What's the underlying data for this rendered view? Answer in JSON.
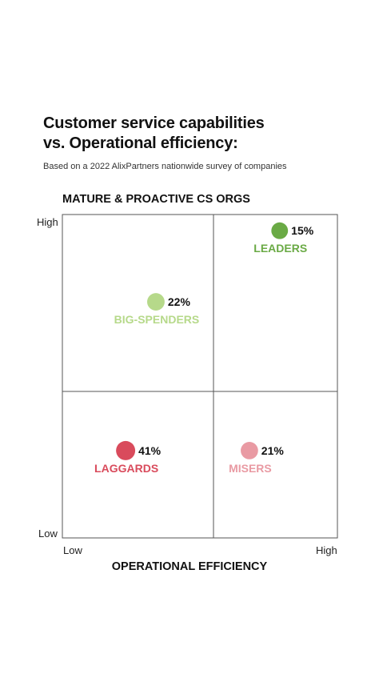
{
  "title": {
    "line1": "Customer service capabilities",
    "line2": "vs. Operational efficiency:"
  },
  "subtitle": "Based on a 2022 AlixPartners nationwide survey of companies",
  "chart_data": {
    "type": "scatter",
    "ylabel": "MATURE & PROACTIVE CS ORGS",
    "xlabel": "OPERATIONAL EFFICIENCY",
    "x_ticks": [
      "Low",
      "High"
    ],
    "y_ticks": [
      "High",
      "Low"
    ],
    "xlim": [
      0,
      1
    ],
    "ylim": [
      0,
      1
    ],
    "grid": "2x2 quadrants",
    "segments": [
      {
        "name": "LEADERS",
        "value": 15,
        "label": "15%",
        "x": 0.79,
        "y": 0.95,
        "color": "#6aaa45"
      },
      {
        "name": "BIG-SPENDERS",
        "value": 22,
        "label": "22%",
        "x": 0.34,
        "y": 0.73,
        "color": "#b6d98a"
      },
      {
        "name": "LAGGARDS",
        "value": 41,
        "label": "41%",
        "x": 0.23,
        "y": 0.27,
        "color": "#d94b5c"
      },
      {
        "name": "MISERS",
        "value": 21,
        "label": "21%",
        "x": 0.68,
        "y": 0.27,
        "color": "#e99aa3"
      }
    ]
  }
}
